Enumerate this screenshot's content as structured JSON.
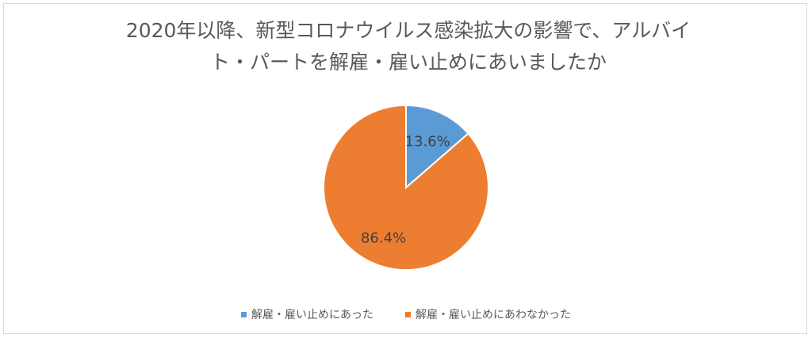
{
  "chart_data": {
    "type": "pie",
    "title_lines": [
      "2020年以降、新型コロナウイルス感染拡大の影響で、アルバイ",
      "ト・パートを解雇・雇い止めにあいましたか"
    ],
    "slices": [
      {
        "label": "解雇・雇い止めにあった",
        "value": 13.6,
        "data_label": "13.6%",
        "color": "#5b9bd5"
      },
      {
        "label": "解雇・雇い止めにあわなかった",
        "value": 86.4,
        "data_label": "86.4%",
        "color": "#ed7d31"
      }
    ],
    "start": "top",
    "direction": "clockwise",
    "legend_position": "bottom"
  }
}
